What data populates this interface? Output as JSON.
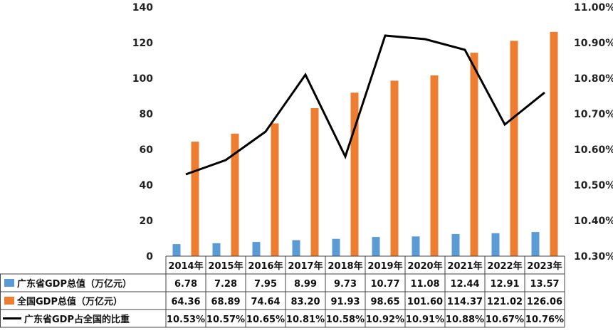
{
  "chart_data": {
    "type": "bar",
    "categories": [
      "2014年",
      "2015年",
      "2016年",
      "2017年",
      "2018年",
      "2019年",
      "2020年",
      "2021年",
      "2022年",
      "2023年"
    ],
    "series": [
      {
        "name": "广东省GDP总值（万亿元）",
        "kind": "bar",
        "axis": "left",
        "color": "#5B9BD5",
        "values": [
          6.78,
          7.28,
          7.95,
          8.99,
          9.73,
          10.77,
          11.08,
          12.44,
          12.91,
          13.57
        ],
        "labels": [
          "6.78",
          "7.28",
          "7.95",
          "8.99",
          "9.73",
          "10.77",
          "11.08",
          "12.44",
          "12.91",
          "13.57"
        ]
      },
      {
        "name": "全国GDP总值（万亿元）",
        "kind": "bar",
        "axis": "left",
        "color": "#ED7D31",
        "values": [
          64.36,
          68.89,
          74.64,
          83.2,
          91.93,
          98.65,
          101.6,
          114.37,
          121.02,
          126.06
        ],
        "labels": [
          "64.36",
          "68.89",
          "74.64",
          "83.20",
          "91.93",
          "98.65",
          "101.60",
          "114.37",
          "121.02",
          "126.06"
        ]
      },
      {
        "name": "广东省GDP占全国的比重",
        "kind": "line",
        "axis": "right",
        "color": "#000000",
        "values": [
          10.53,
          10.57,
          10.65,
          10.81,
          10.58,
          10.92,
          10.91,
          10.88,
          10.67,
          10.76
        ],
        "labels": [
          "10.53%",
          "10.57%",
          "10.65%",
          "10.81%",
          "10.58%",
          "10.92%",
          "10.91%",
          "10.88%",
          "10.67%",
          "10.76%"
        ]
      }
    ],
    "y_left": {
      "ylim": [
        0,
        140
      ],
      "ticks": [
        "0",
        "20",
        "40",
        "60",
        "80",
        "100",
        "120",
        "140"
      ]
    },
    "y_right": {
      "ylim": [
        10.3,
        11.0
      ],
      "ticks": [
        "10.30%",
        "10.40%",
        "10.50%",
        "10.60%",
        "10.70%",
        "10.80%",
        "10.90%",
        "11.00%"
      ]
    },
    "grid": false,
    "legend": "data-table"
  }
}
